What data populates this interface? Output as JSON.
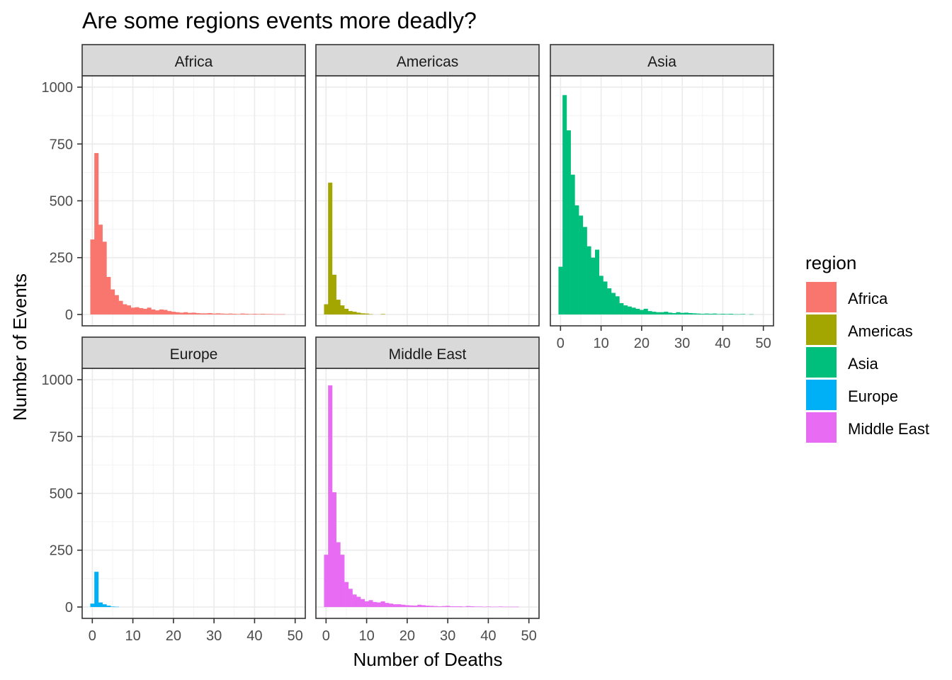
{
  "chart_data": {
    "type": "bar",
    "subtype": "faceted-histogram",
    "title": "Are some regions events more deadly?",
    "xlabel": "Number of Deaths",
    "ylabel": "Number of Events",
    "xlim": [
      -2.5,
      52.5
    ],
    "ylim": [
      -50,
      1050
    ],
    "x_ticks": [
      0,
      10,
      20,
      30,
      40,
      50
    ],
    "y_ticks": [
      0,
      250,
      500,
      750,
      1000
    ],
    "grid": true,
    "bin_width": 1,
    "legend": {
      "title": "region",
      "placement": "right",
      "items": [
        {
          "label": "Africa",
          "color": "#F8766D"
        },
        {
          "label": "Americas",
          "color": "#A3A500"
        },
        {
          "label": "Asia",
          "color": "#00BF7D"
        },
        {
          "label": "Europe",
          "color": "#00B0F6"
        },
        {
          "label": "Middle East",
          "color": "#E76BF3"
        }
      ]
    },
    "bin_centers": [
      0,
      1,
      2,
      3,
      4,
      5,
      6,
      7,
      8,
      9,
      10,
      11,
      12,
      13,
      14,
      15,
      16,
      17,
      18,
      19,
      20,
      21,
      22,
      23,
      24,
      25,
      26,
      27,
      28,
      29,
      30,
      31,
      32,
      33,
      34,
      35,
      36,
      37,
      38,
      39,
      40,
      41,
      42,
      43,
      44,
      45,
      46,
      47,
      48,
      49,
      50
    ],
    "series": [
      {
        "name": "Africa",
        "color": "#F8766D",
        "values": [
          330,
          710,
          395,
          320,
          165,
          110,
          85,
          60,
          45,
          40,
          30,
          32,
          28,
          25,
          30,
          22,
          18,
          22,
          20,
          15,
          12,
          10,
          8,
          10,
          7,
          8,
          6,
          5,
          5,
          6,
          4,
          5,
          4,
          3,
          4,
          3,
          2,
          4,
          3,
          2,
          3,
          2,
          3,
          2,
          2,
          1,
          1,
          1,
          0,
          0,
          0
        ]
      },
      {
        "name": "Americas",
        "color": "#A3A500",
        "values": [
          45,
          580,
          175,
          65,
          40,
          25,
          15,
          12,
          8,
          5,
          4,
          1,
          0,
          0,
          2,
          0,
          0,
          0,
          0,
          0,
          0,
          0,
          0,
          0,
          0,
          0,
          0,
          0,
          0,
          0,
          0,
          0,
          0,
          0,
          0,
          0,
          0,
          0,
          0,
          0,
          0,
          0,
          0,
          0,
          0,
          0,
          0,
          0,
          0,
          0,
          0
        ]
      },
      {
        "name": "Asia",
        "color": "#00BF7D",
        "values": [
          210,
          965,
          810,
          615,
          480,
          435,
          385,
          300,
          250,
          285,
          170,
          145,
          115,
          95,
          80,
          50,
          40,
          35,
          30,
          25,
          20,
          25,
          15,
          12,
          10,
          10,
          12,
          8,
          6,
          10,
          7,
          8,
          6,
          5,
          4,
          3,
          4,
          3,
          4,
          2,
          3,
          2,
          3,
          1,
          1,
          2,
          0,
          1,
          0,
          0,
          0
        ]
      },
      {
        "name": "Europe",
        "color": "#00B0F6",
        "values": [
          15,
          155,
          20,
          12,
          6,
          2,
          1,
          0,
          0,
          0,
          0,
          0,
          0,
          0,
          0,
          0,
          0,
          0,
          0,
          0,
          0,
          0,
          0,
          0,
          0,
          0,
          0,
          0,
          0,
          0,
          0,
          0,
          0,
          0,
          0,
          0,
          0,
          0,
          0,
          0,
          0,
          0,
          0,
          0,
          0,
          0,
          0,
          0,
          0,
          0,
          0
        ]
      },
      {
        "name": "Middle East",
        "color": "#E76BF3",
        "values": [
          230,
          975,
          505,
          285,
          230,
          110,
          80,
          55,
          45,
          35,
          25,
          30,
          22,
          20,
          25,
          18,
          15,
          12,
          12,
          10,
          8,
          7,
          6,
          10,
          8,
          6,
          5,
          4,
          3,
          4,
          5,
          3,
          3,
          3,
          2,
          4,
          3,
          2,
          2,
          1,
          2,
          1,
          1,
          2,
          1,
          1,
          1,
          1,
          0,
          0,
          0
        ]
      }
    ]
  }
}
